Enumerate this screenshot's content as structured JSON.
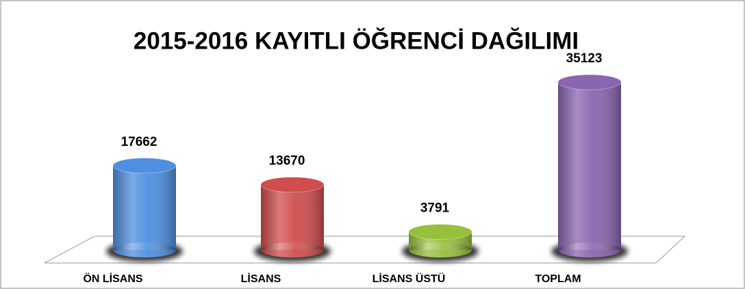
{
  "chart_data": {
    "type": "bar",
    "title": "2015-2016 KAYITLI ÖĞRENCİ DAĞILIMI",
    "categories": [
      "ÖN LİSANS",
      "LİSANS",
      "LİSANS ÜSTÜ",
      "TOPLAM"
    ],
    "values": [
      17662,
      13670,
      3791,
      35123
    ],
    "colors": [
      "#4f8fdf",
      "#cf4d4d",
      "#96c03c",
      "#8a65b0"
    ]
  }
}
